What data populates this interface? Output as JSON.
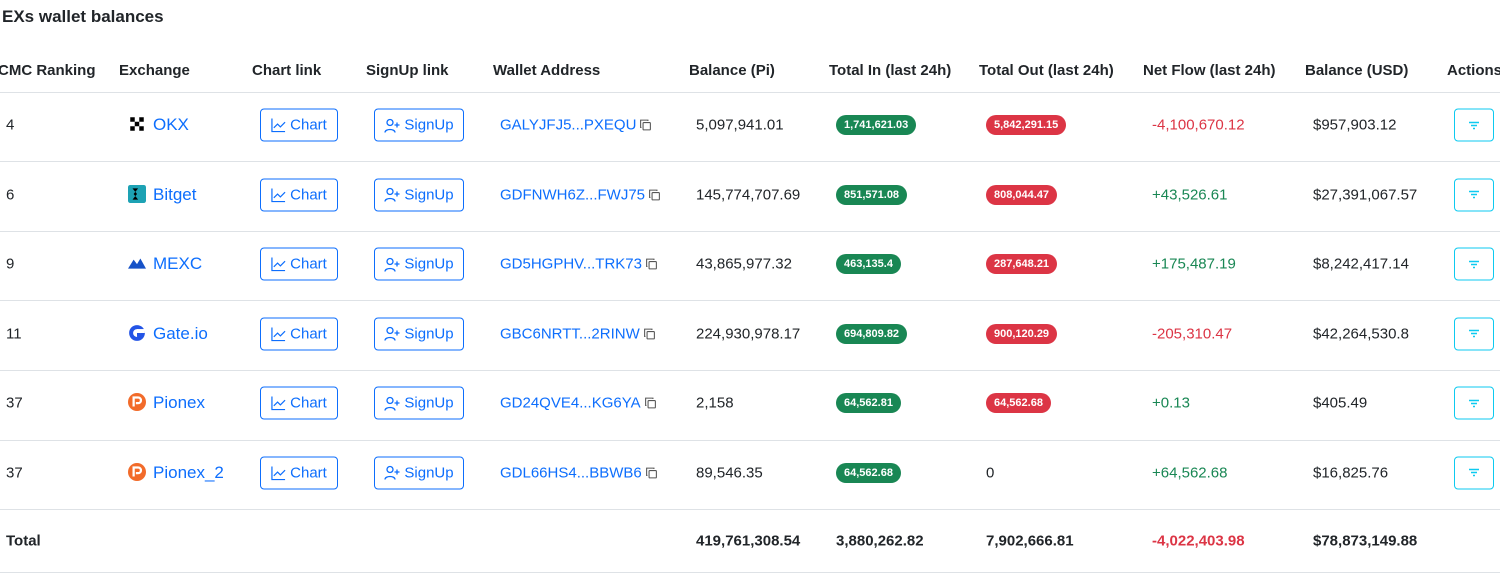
{
  "title": "EXs wallet balances",
  "columns": [
    "CMC Ranking",
    "Exchange",
    "Chart link",
    "SignUp link",
    "Wallet Address",
    "Balance (Pi)",
    "Total In (last 24h)",
    "Total Out (last 24h)",
    "Net Flow (last 24h)",
    "Balance (USD)",
    "Actions"
  ],
  "rows": [
    {
      "rank": "4",
      "exchange": "OKX",
      "chart": "Chart",
      "signup": "SignUp",
      "wallet": "GALYJFJ5...PXEQU",
      "balance_pi": "5,097,941.01",
      "total_in": "1,741,621.03",
      "total_out": "5,842,291.15",
      "net_flow": "-4,100,670.12",
      "balance_usd": "$957,903.12"
    },
    {
      "rank": "6",
      "exchange": "Bitget",
      "chart": "Chart",
      "signup": "SignUp",
      "wallet": "GDFNWH6Z...FWJ75",
      "balance_pi": "145,774,707.69",
      "total_in": "851,571.08",
      "total_out": "808,044.47",
      "net_flow": "+43,526.61",
      "balance_usd": "$27,391,067.57"
    },
    {
      "rank": "9",
      "exchange": "MEXC",
      "chart": "Chart",
      "signup": "SignUp",
      "wallet": "GD5HGPHV...TRK73",
      "balance_pi": "43,865,977.32",
      "total_in": "463,135.4",
      "total_out": "287,648.21",
      "net_flow": "+175,487.19",
      "balance_usd": "$8,242,417.14"
    },
    {
      "rank": "11",
      "exchange": "Gate.io",
      "chart": "Chart",
      "signup": "SignUp",
      "wallet": "GBC6NRTT...2RINW",
      "balance_pi": "224,930,978.17",
      "total_in": "694,809.82",
      "total_out": "900,120.29",
      "net_flow": "-205,310.47",
      "balance_usd": "$42,264,530.8"
    },
    {
      "rank": "37",
      "exchange": "Pionex",
      "chart": "Chart",
      "signup": "SignUp",
      "wallet": "GD24QVE4...KG6YA",
      "balance_pi": "2,158",
      "total_in": "64,562.81",
      "total_out": "64,562.68",
      "net_flow": "+0.13",
      "balance_usd": "$405.49"
    },
    {
      "rank": "37",
      "exchange": "Pionex_2",
      "chart": "Chart",
      "signup": "SignUp",
      "wallet": "GDL66HS4...BBWB6",
      "balance_pi": "89,546.35",
      "total_in": "64,562.68",
      "total_out": "0",
      "net_flow": "+64,562.68",
      "balance_usd": "$16,825.76"
    }
  ],
  "total": {
    "label": "Total",
    "balance_pi": "419,761,308.54",
    "total_in": "3,880,262.82",
    "total_out": "7,902,666.81",
    "net_flow": "-4,022,403.98",
    "balance_usd": "$78,873,149.88"
  }
}
